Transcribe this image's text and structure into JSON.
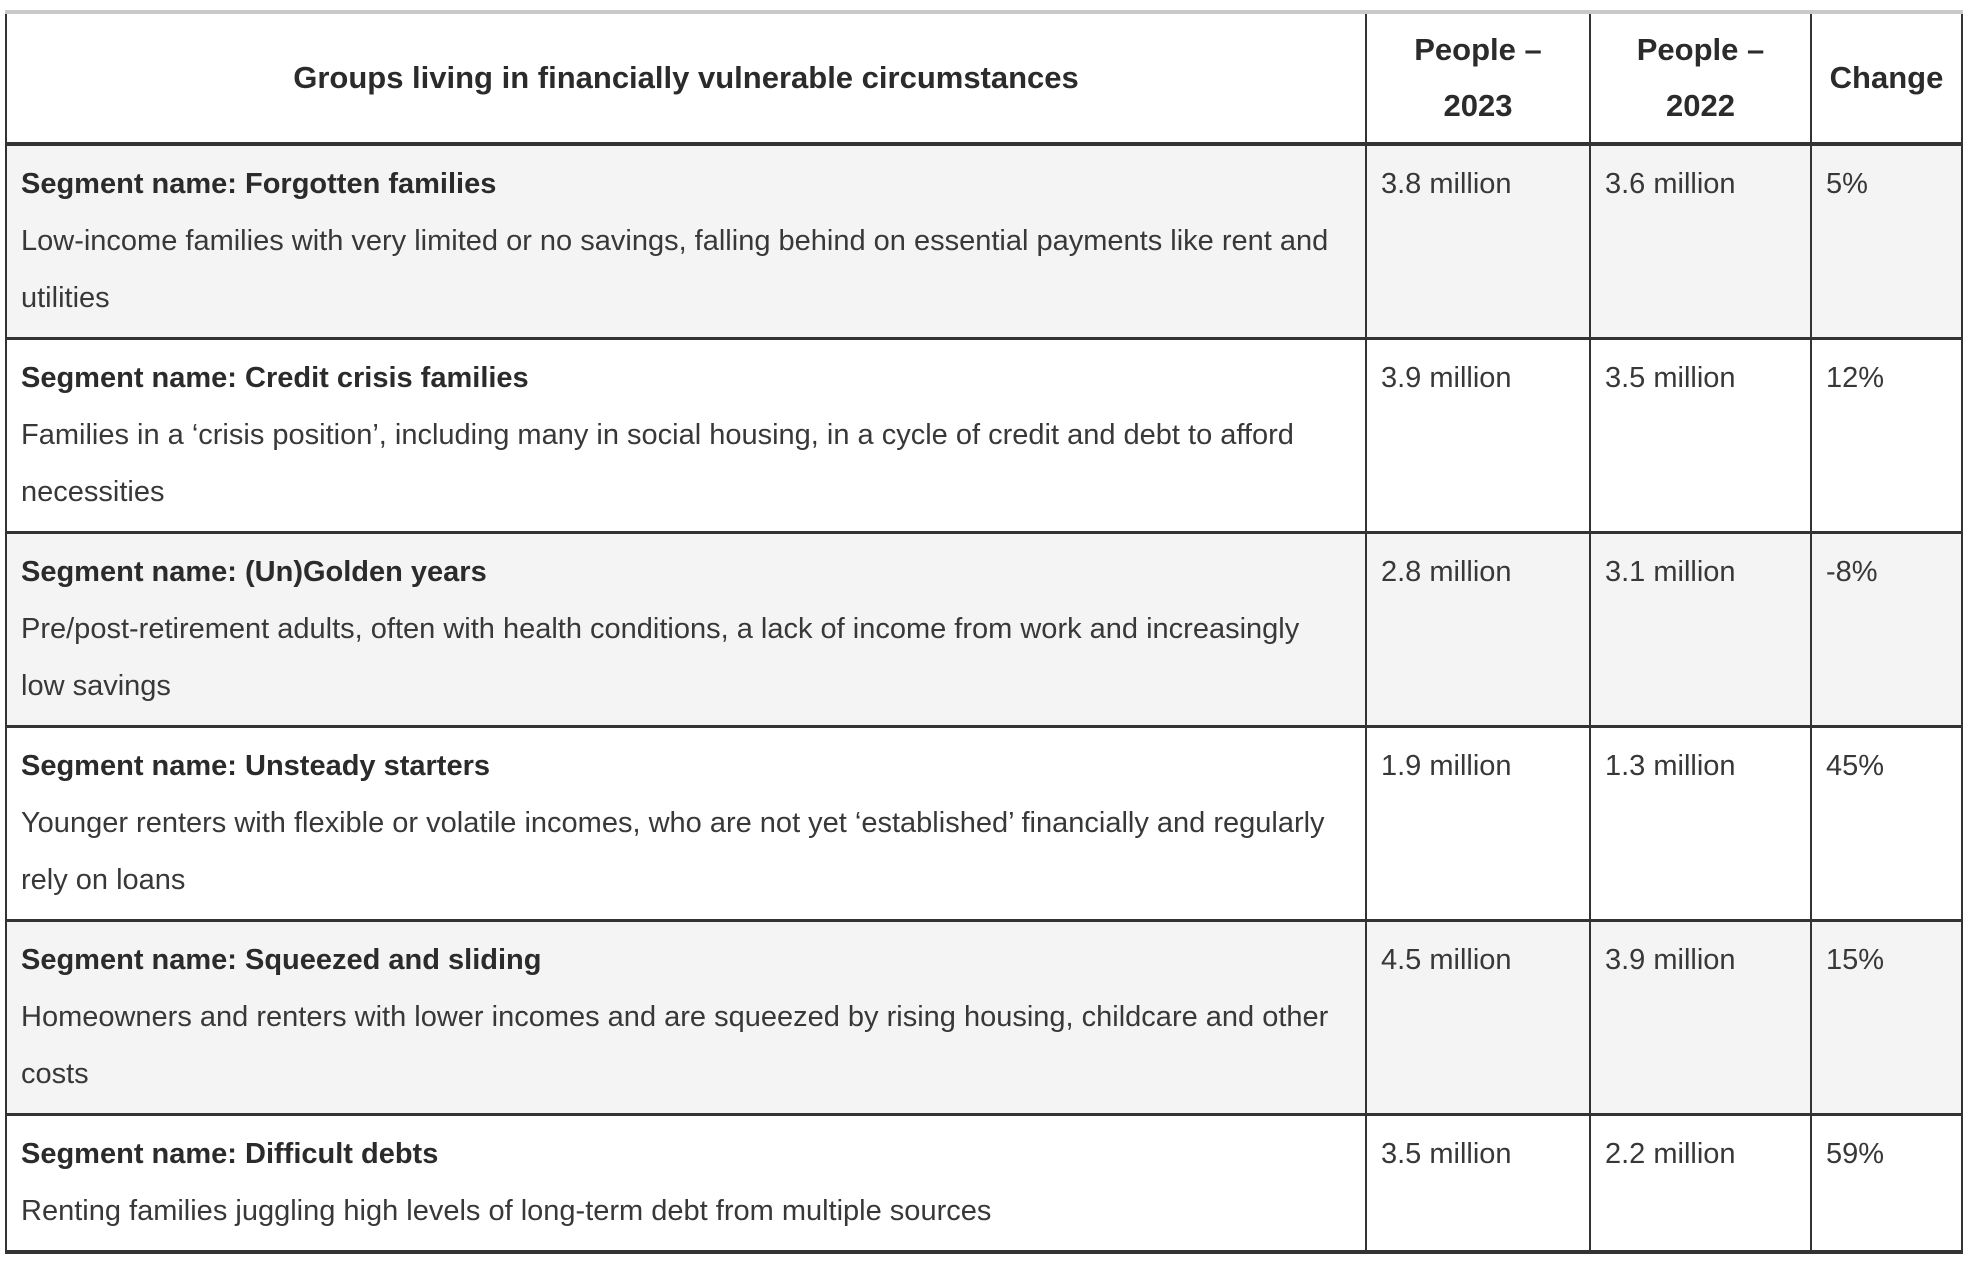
{
  "colors": {
    "border_dark": "#333333",
    "border_top_light": "#c9c9c9",
    "row_alt_background": "#f4f4f4",
    "row_background": "#ffffff",
    "text": "#303030"
  },
  "table": {
    "headers": [
      "Groups living in financially vulnerable circumstances",
      "People – 2023",
      "People – 2022",
      "Change"
    ],
    "rows": [
      {
        "segment": "Segment name: Forgotten families",
        "description": "Low-income families with very limited or no savings, falling behind on essential payments like rent and utilities",
        "people_2023": "3.8 million",
        "people_2022": "3.6 million",
        "change": "5%"
      },
      {
        "segment": "Segment name: Credit crisis families",
        "description": "Families in a ‘crisis position’, including many in social housing, in a cycle of credit and debt to afford necessities",
        "people_2023": "3.9 million",
        "people_2022": "3.5 million",
        "change": "12%"
      },
      {
        "segment": "Segment name: (Un)Golden years",
        "description": "Pre/post-retirement adults, often with health conditions, a lack of income from work and increasingly low savings",
        "people_2023": "2.8 million",
        "people_2022": "3.1 million",
        "change": "-8%"
      },
      {
        "segment": "Segment name: Unsteady starters",
        "description": "Younger renters with flexible or volatile incomes, who are not yet ‘established’ financially and regularly rely on loans",
        "people_2023": "1.9 million",
        "people_2022": "1.3 million",
        "change": "45%"
      },
      {
        "segment": "Segment name: Squeezed and sliding",
        "description": "Homeowners and renters with lower incomes and are squeezed by rising housing, childcare and other costs",
        "people_2023": "4.5 million",
        "people_2022": "3.9 million",
        "change": "15%"
      },
      {
        "segment": "Segment name: Difficult debts",
        "description": "Renting families juggling high levels of long-term debt from multiple sources",
        "people_2023": "3.5 million",
        "people_2022": "2.2 million",
        "change": "59%"
      }
    ]
  }
}
